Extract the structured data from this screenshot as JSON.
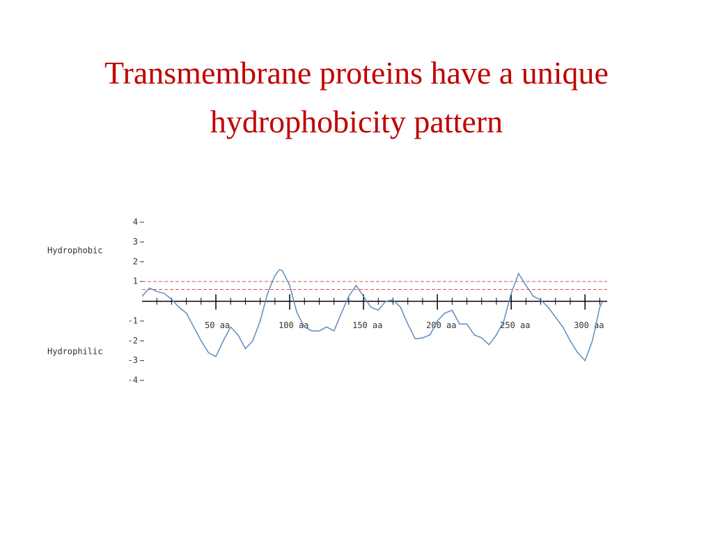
{
  "chart_data": {
    "type": "line",
    "title": "Transmembrane proteins have a unique hydrophobicity pattern",
    "annotations": [
      "Hydrophobic",
      "Hydrophilic"
    ],
    "x": [
      0,
      5,
      10,
      15,
      20,
      25,
      30,
      35,
      40,
      45,
      50,
      55,
      60,
      65,
      70,
      75,
      80,
      85,
      90,
      93,
      95,
      100,
      105,
      110,
      115,
      120,
      125,
      130,
      135,
      140,
      145,
      150,
      155,
      160,
      165,
      170,
      175,
      180,
      185,
      190,
      195,
      200,
      205,
      210,
      215,
      220,
      225,
      230,
      235,
      240,
      245,
      250,
      255,
      260,
      265,
      270,
      275,
      280,
      285,
      290,
      295,
      300,
      305,
      310,
      312
    ],
    "series": [
      {
        "name": "hydrophobicity",
        "color": "#5b8cc0",
        "values": [
          0.25,
          0.67,
          0.5,
          0.4,
          0.1,
          -0.3,
          -0.6,
          -1.3,
          -2.0,
          -2.6,
          -2.8,
          -2.0,
          -1.3,
          -1.7,
          -2.4,
          -2.0,
          -1.0,
          0.4,
          1.3,
          1.6,
          1.55,
          0.8,
          -0.6,
          -1.3,
          -1.5,
          -1.5,
          -1.3,
          -1.5,
          -0.6,
          0.25,
          0.8,
          0.25,
          -0.3,
          -0.45,
          0,
          0.07,
          -0.3,
          -1.15,
          -1.9,
          -1.85,
          -1.7,
          -1.0,
          -0.6,
          -0.45,
          -1.15,
          -1.15,
          -1.7,
          -1.85,
          -2.2,
          -1.7,
          -1.0,
          0.4,
          1.4,
          0.8,
          0.25,
          0.07,
          -0.3,
          -0.8,
          -1.3,
          -2.0,
          -2.6,
          -3.0,
          -2.0,
          -0.3,
          0
        ]
      }
    ],
    "thresholds": [
      1.0,
      0.6
    ],
    "threshold_color": "#e05050",
    "xlim": [
      0,
      315
    ],
    "ylim": [
      -4,
      4
    ],
    "xticks": [
      {
        "value": 50,
        "label": "50 aa"
      },
      {
        "value": 100,
        "label": "100 aa"
      },
      {
        "value": 150,
        "label": "150 aa"
      },
      {
        "value": 200,
        "label": "200 aa"
      },
      {
        "value": 250,
        "label": "250 aa"
      },
      {
        "value": 300,
        "label": "300 aa"
      }
    ],
    "xminorticks": [
      10,
      20,
      30,
      40,
      60,
      70,
      80,
      90,
      110,
      120,
      130,
      140,
      160,
      170,
      180,
      190,
      210,
      220,
      230,
      240,
      260,
      270,
      280,
      290,
      310
    ],
    "yticks": [
      4,
      3,
      2,
      1,
      -1,
      -2,
      -3,
      -4
    ]
  }
}
